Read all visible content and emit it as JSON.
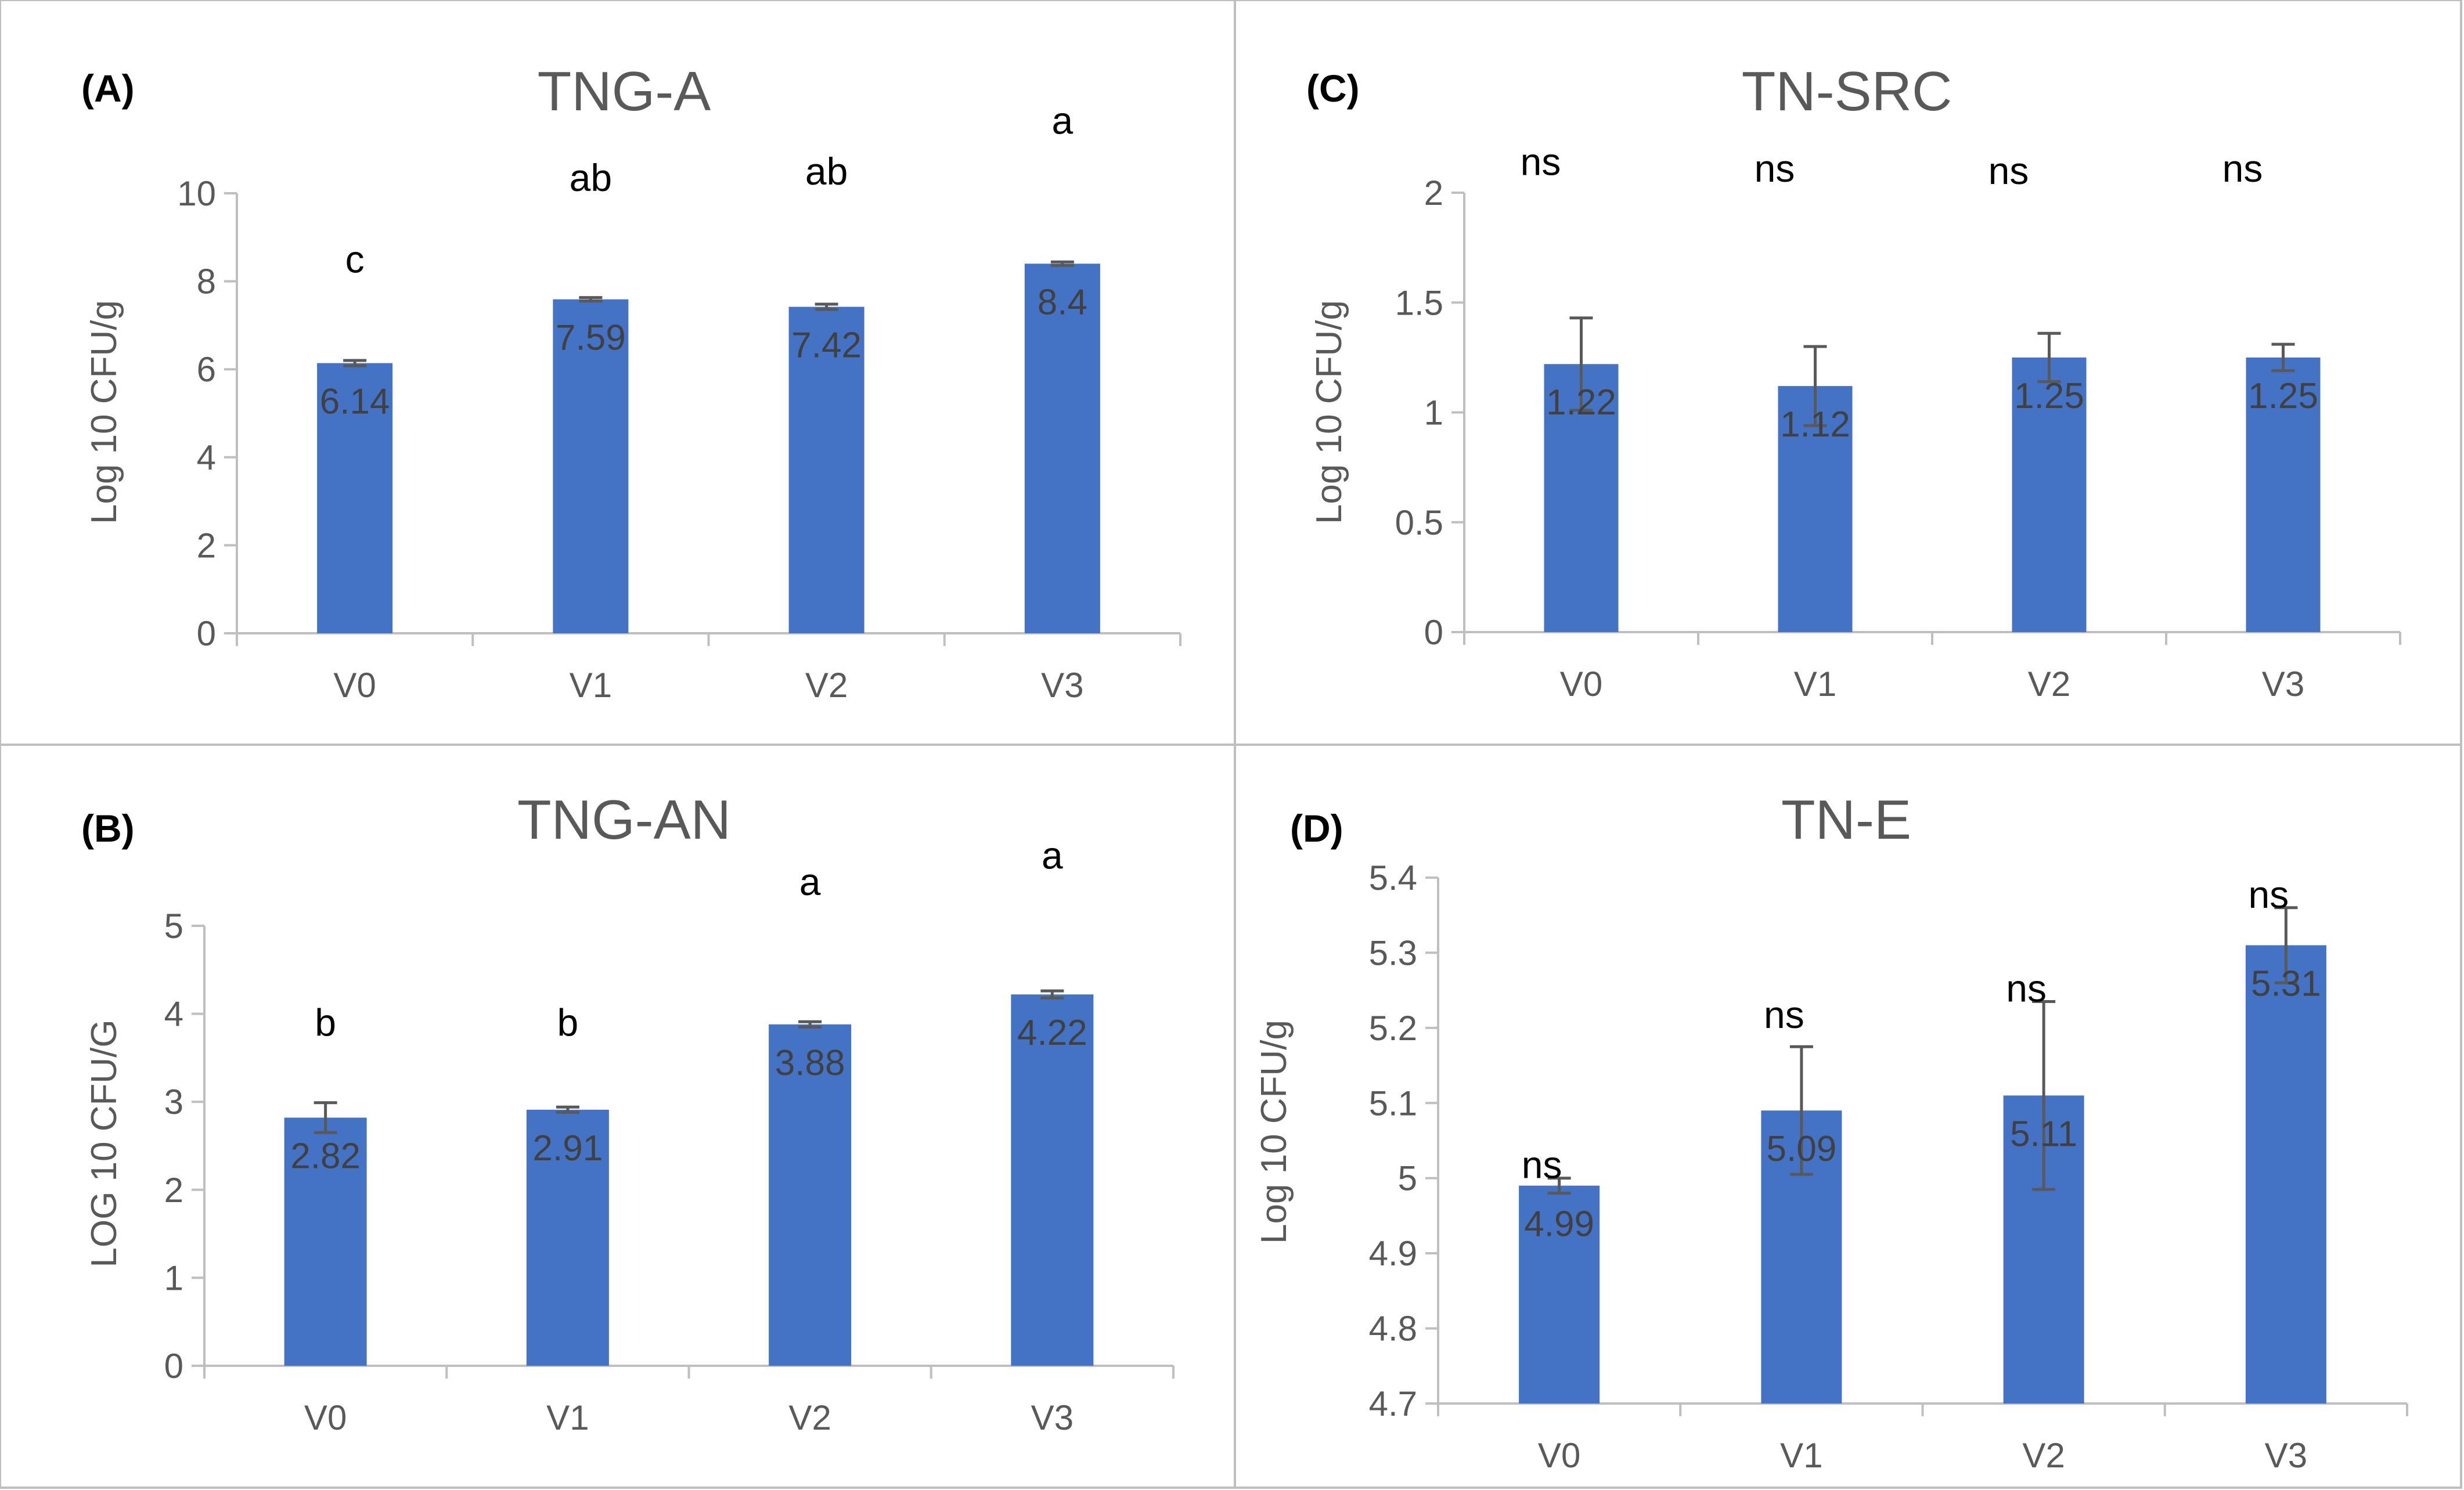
{
  "chart_data": [
    {
      "type": "bar",
      "panel_label": "(A)",
      "title": "TNG-A",
      "ylabel": "Log 10 CFU/g",
      "xlabel": "",
      "categories": [
        "V0",
        "V1",
        "V2",
        "V3"
      ],
      "values": [
        6.14,
        7.59,
        7.42,
        8.4
      ],
      "errors": [
        0.06,
        0.04,
        0.06,
        0.04
      ],
      "data_labels": [
        "6.14",
        "7.59",
        "7.42",
        "8.4"
      ],
      "significance": [
        "c",
        "ab",
        "ab",
        "a"
      ],
      "sig_levels": [
        8.2,
        10.05,
        10.2,
        11.35
      ],
      "ylim": [
        0,
        10
      ],
      "yticks": [
        0,
        2,
        4,
        6,
        8,
        10
      ],
      "ytick_labels": [
        "0",
        "2",
        "4",
        "6",
        "8",
        "10"
      ],
      "color": "#4472C4",
      "grid": false
    },
    {
      "type": "bar",
      "panel_label": "(B)",
      "title": "TNG-AN",
      "ylabel": "LOG 10 CFU/G",
      "xlabel": "",
      "categories": [
        "V0",
        "V1",
        "V2",
        "V3"
      ],
      "values": [
        2.82,
        2.91,
        3.88,
        4.22
      ],
      "errors": [
        0.17,
        0.03,
        0.03,
        0.04
      ],
      "data_labels": [
        "2.82",
        "2.91",
        "3.88",
        "4.22"
      ],
      "significance": [
        "b",
        "b",
        "a",
        "a"
      ],
      "sig_levels": [
        3.75,
        3.75,
        5.35,
        5.65
      ],
      "ylim": [
        0,
        5
      ],
      "yticks": [
        0,
        1,
        2,
        3,
        4,
        5
      ],
      "ytick_labels": [
        "0",
        "1",
        "2",
        "3",
        "4",
        "5"
      ],
      "color": "#4472C4",
      "grid": false
    },
    {
      "type": "bar",
      "panel_label": "(C)",
      "title": "TN-SRC",
      "ylabel": "Log 10 CFU/g",
      "xlabel": "",
      "categories": [
        "V0",
        "V1",
        "V2",
        "V3"
      ],
      "values": [
        1.22,
        1.12,
        1.25,
        1.25
      ],
      "errors": [
        0.21,
        0.18,
        0.11,
        0.06
      ],
      "data_labels": [
        "1.22",
        "1.12",
        "1.25",
        "1.25"
      ],
      "significance": [
        "ns",
        "ns",
        "ns",
        "ns"
      ],
      "sig_levels": [
        2.08,
        2.05,
        2.04,
        2.05
      ],
      "ylim": [
        0,
        2
      ],
      "yticks": [
        0,
        0.5,
        1,
        1.5,
        2
      ],
      "ytick_labels": [
        "0",
        "0.5",
        "1",
        "1.5",
        "2"
      ],
      "color": "#4472C4",
      "grid": false
    },
    {
      "type": "bar",
      "panel_label": "(D)",
      "title": "TN-E",
      "ylabel": "Log 10 CFU/g",
      "xlabel": "",
      "categories": [
        "V0",
        "V1",
        "V2",
        "V3"
      ],
      "values": [
        4.99,
        5.09,
        5.11,
        5.31
      ],
      "errors": [
        0.01,
        0.085,
        0.125,
        0.05
      ],
      "data_labels": [
        "4.99",
        "5.09",
        "5.11",
        "5.31"
      ],
      "significance": [
        "ns",
        "ns",
        "ns",
        "ns"
      ],
      "sig_levels": [
        5.0,
        5.2,
        5.235,
        5.36
      ],
      "ylim": [
        4.7,
        5.4
      ],
      "yticks": [
        4.7,
        4.8,
        4.9,
        5.0,
        5.1,
        5.2,
        5.3,
        5.4
      ],
      "ytick_labels": [
        "4.7",
        "4.8",
        "4.9",
        "5",
        "5.1",
        "5.2",
        "5.3",
        "5.4"
      ],
      "color": "#4472C4",
      "grid": false
    }
  ]
}
